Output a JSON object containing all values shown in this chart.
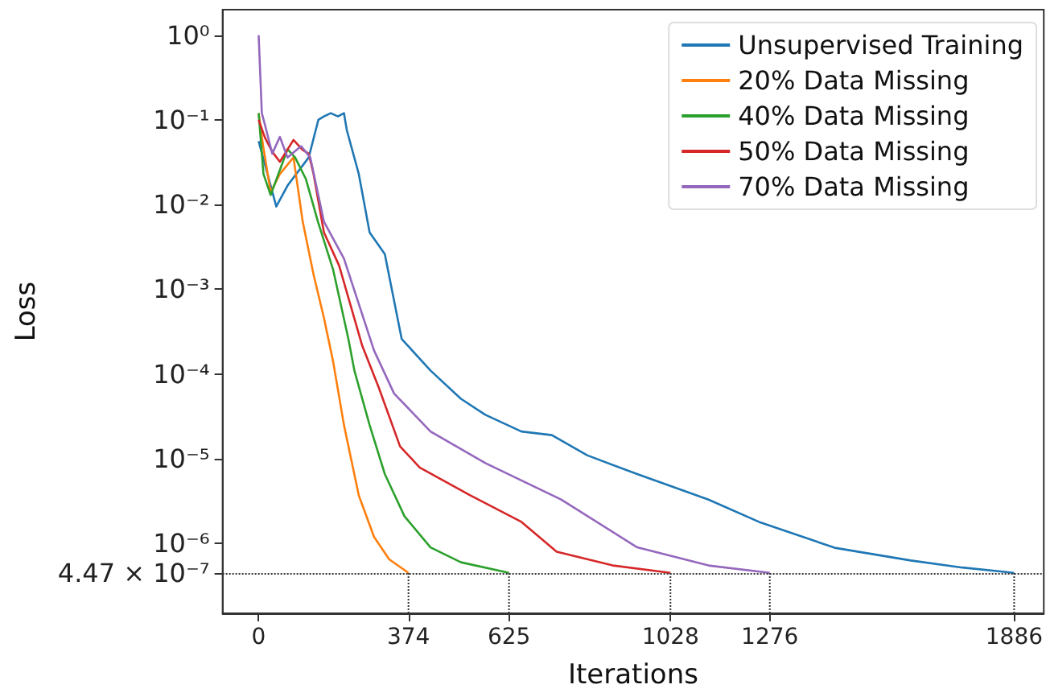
{
  "chart_data": {
    "type": "line",
    "xlabel": "Iterations",
    "ylabel": "Loss",
    "log": "y",
    "xlim": [
      -90,
      1960
    ],
    "xticks": [
      0,
      374,
      625,
      1028,
      1276,
      1886
    ],
    "ylim": [
      1.5e-07,
      2
    ],
    "yticks": [
      {
        "value": 1,
        "label": "10⁰"
      },
      {
        "value": 0.1,
        "label": "10⁻¹"
      },
      {
        "value": 0.01,
        "label": "10⁻²"
      },
      {
        "value": 0.001,
        "label": "10⁻³"
      },
      {
        "value": 0.0001,
        "label": "10⁻⁴"
      },
      {
        "value": 1e-05,
        "label": "10⁻⁵"
      },
      {
        "value": 1e-06,
        "label": "10⁻⁶"
      },
      {
        "value": 4.47e-07,
        "label": "4.47 × 10⁻⁷"
      }
    ],
    "grid": false,
    "legend": "top right",
    "marker": "none",
    "line_style": "solid",
    "ref_lines": [
      {
        "axis": "y",
        "value": 4.47e-07,
        "color": "#333333",
        "line_style": "dotted"
      }
    ],
    "series": [
      {
        "color": "#333333",
        "line_style": "dotted",
        "x": [
          374,
          374
        ],
        "values": [
          1.5e-07,
          4.47e-07
        ]
      },
      {
        "color": "#333333",
        "line_style": "dotted",
        "x": [
          625,
          625
        ],
        "values": [
          1.5e-07,
          4.47e-07
        ]
      },
      {
        "color": "#333333",
        "line_style": "dotted",
        "x": [
          1028,
          1028
        ],
        "values": [
          1.5e-07,
          4.47e-07
        ]
      },
      {
        "color": "#333333",
        "line_style": "dotted",
        "x": [
          1276,
          1276
        ],
        "values": [
          1.5e-07,
          4.47e-07
        ]
      },
      {
        "color": "#333333",
        "line_style": "dotted",
        "x": [
          1886,
          1886
        ],
        "values": [
          1.5e-07,
          4.47e-07
        ]
      },
      {
        "name": "Unsupervised Training",
        "color": "#1f77b4",
        "x": [
          0,
          44,
          73,
          125,
          149,
          163,
          180,
          198,
          213,
          220,
          250,
          277,
          315,
          357,
          429,
          505,
          566,
          656,
          732,
          820,
          945,
          1123,
          1249,
          1438,
          1628,
          1757,
          1886
        ],
        "values": [
          0.056,
          0.0095,
          0.017,
          0.036,
          0.1,
          0.11,
          0.12,
          0.11,
          0.12,
          0.076,
          0.023,
          0.0047,
          0.0026,
          0.00026,
          0.00011,
          5.1e-05,
          3.3e-05,
          2.1e-05,
          1.9e-05,
          1.1e-05,
          6.6e-06,
          3.3e-06,
          1.8e-06,
          8.9e-07,
          6.3e-07,
          5.2e-07,
          4.5e-07
        ]
      },
      {
        "name": "20% Data Missing",
        "color": "#ff7f0e",
        "x": [
          0,
          11,
          30,
          53,
          87,
          110,
          137,
          163,
          186,
          213,
          250,
          288,
          326,
          374
        ],
        "values": [
          0.12,
          0.05,
          0.014,
          0.023,
          0.036,
          0.0063,
          0.0015,
          0.00046,
          0.00014,
          2.5e-05,
          3.7e-06,
          1.2e-06,
          6.5e-07,
          4.5e-07
        ]
      },
      {
        "name": "40% Data Missing",
        "color": "#2ca02c",
        "x": [
          0,
          12,
          30,
          72,
          91,
          118,
          148,
          186,
          224,
          239,
          277,
          315,
          364,
          429,
          505,
          625
        ],
        "values": [
          0.12,
          0.023,
          0.013,
          0.045,
          0.036,
          0.02,
          0.0063,
          0.0017,
          0.00026,
          0.00011,
          2.5e-05,
          6.6e-06,
          2.1e-06,
          9e-07,
          6e-07,
          4.5e-07
        ]
      },
      {
        "name": "50% Data Missing",
        "color": "#d62728",
        "x": [
          0,
          15,
          34,
          53,
          87,
          110,
          125,
          137,
          163,
          201,
          258,
          300,
          353,
          402,
          528,
          656,
          744,
          884,
          1028
        ],
        "values": [
          0.1,
          0.063,
          0.042,
          0.032,
          0.058,
          0.044,
          0.04,
          0.023,
          0.0047,
          0.0019,
          0.00022,
          6.9e-05,
          1.4e-05,
          7.9e-06,
          3.7e-06,
          1.8e-06,
          8e-07,
          5.5e-07,
          4.5e-07
        ]
      },
      {
        "name": "70% Data Missing",
        "color": "#9467bd",
        "x": [
          0,
          8,
          15,
          34,
          53,
          72,
          106,
          129,
          163,
          213,
          288,
          338,
          429,
          566,
          755,
          945,
          1123,
          1276
        ],
        "values": [
          1,
          0.12,
          0.09,
          0.04,
          0.063,
          0.036,
          0.049,
          0.036,
          0.0063,
          0.0023,
          0.00019,
          5.9e-05,
          2.1e-05,
          8.9e-06,
          3.3e-06,
          9e-07,
          5.5e-07,
          4.5e-07
        ]
      }
    ]
  }
}
